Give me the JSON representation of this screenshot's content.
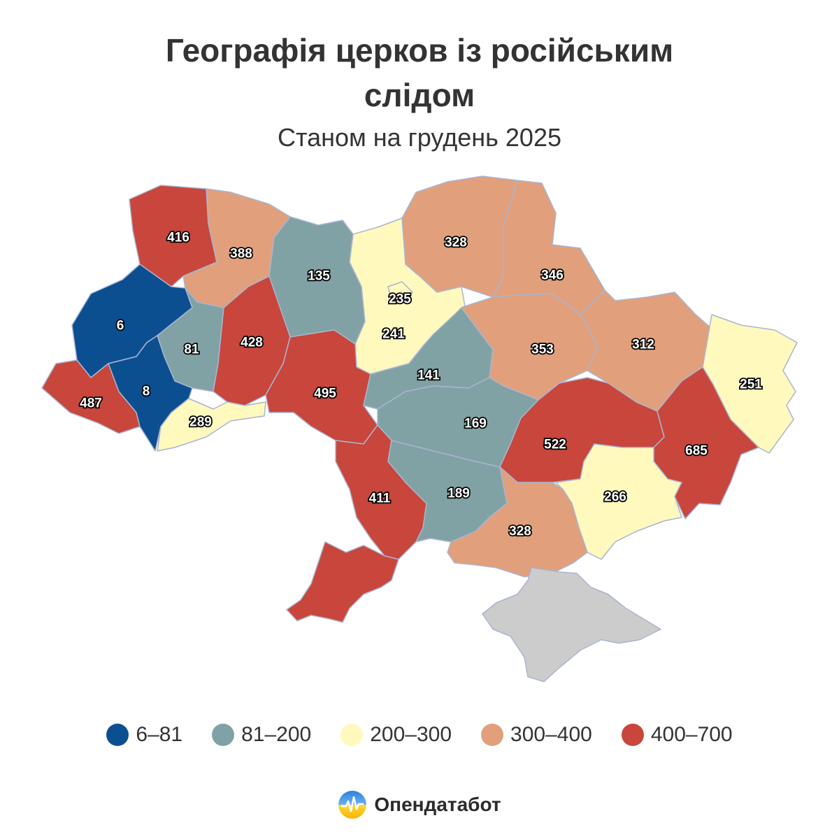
{
  "header": {
    "title_line1": "Географія церков із російським",
    "title_line2": "слідом",
    "subtitle": "Станом на грудень 2025"
  },
  "colors": {
    "c1": "#0b4f91",
    "c2": "#81a2a5",
    "c3": "#fff9bd",
    "c4": "#e1a07b",
    "c5": "#c8463b",
    "occupied": "#cccccc"
  },
  "regions": [
    {
      "id": "volyn",
      "value": 416,
      "cls": "c5"
    },
    {
      "id": "rivne",
      "value": 388,
      "cls": "c4"
    },
    {
      "id": "zhytomyr",
      "value": 135,
      "cls": "c2"
    },
    {
      "id": "kyiv-city",
      "value": 235,
      "cls": "c3"
    },
    {
      "id": "kyiv-oblast",
      "value": 241,
      "cls": "c3"
    },
    {
      "id": "chernihiv",
      "value": 328,
      "cls": "c4"
    },
    {
      "id": "sumy",
      "value": 346,
      "cls": "c4"
    },
    {
      "id": "lviv",
      "value": 6,
      "cls": "c1"
    },
    {
      "id": "ternopil",
      "value": 81,
      "cls": "c2"
    },
    {
      "id": "khmelnytskyi",
      "value": 428,
      "cls": "c5"
    },
    {
      "id": "vinnytsia",
      "value": 495,
      "cls": "c5"
    },
    {
      "id": "cherkasy",
      "value": 141,
      "cls": "c2"
    },
    {
      "id": "poltava",
      "value": 353,
      "cls": "c4"
    },
    {
      "id": "kharkiv",
      "value": 312,
      "cls": "c4"
    },
    {
      "id": "luhansk",
      "value": 251,
      "cls": "c3"
    },
    {
      "id": "zakarpattia",
      "value": 487,
      "cls": "c5"
    },
    {
      "id": "ivano-frankivsk",
      "value": 8,
      "cls": "c1"
    },
    {
      "id": "chernivtsi",
      "value": 289,
      "cls": "c3"
    },
    {
      "id": "kirovohrad",
      "value": 169,
      "cls": "c2"
    },
    {
      "id": "dnipro",
      "value": 522,
      "cls": "c5"
    },
    {
      "id": "donetsk",
      "value": 685,
      "cls": "c5"
    },
    {
      "id": "zaporizhzhia",
      "value": 266,
      "cls": "c3"
    },
    {
      "id": "odesa-north",
      "value": 411,
      "cls": "c5"
    },
    {
      "id": "mykolaiv",
      "value": 189,
      "cls": "c2"
    },
    {
      "id": "kherson",
      "value": 328,
      "cls": "c4"
    },
    {
      "id": "odesa-south",
      "value": null,
      "cls": "c5"
    },
    {
      "id": "crimea",
      "value": null,
      "cls": "occupied"
    }
  ],
  "legend": [
    {
      "label": "6–81",
      "color": "#0b4f91"
    },
    {
      "label": "81–200",
      "color": "#81a2a5"
    },
    {
      "label": "200–300",
      "color": "#fff9bd"
    },
    {
      "label": "300–400",
      "color": "#e1a07b"
    },
    {
      "label": "400–700",
      "color": "#c8463b"
    }
  ],
  "brand": {
    "name": "Опендатабот"
  }
}
